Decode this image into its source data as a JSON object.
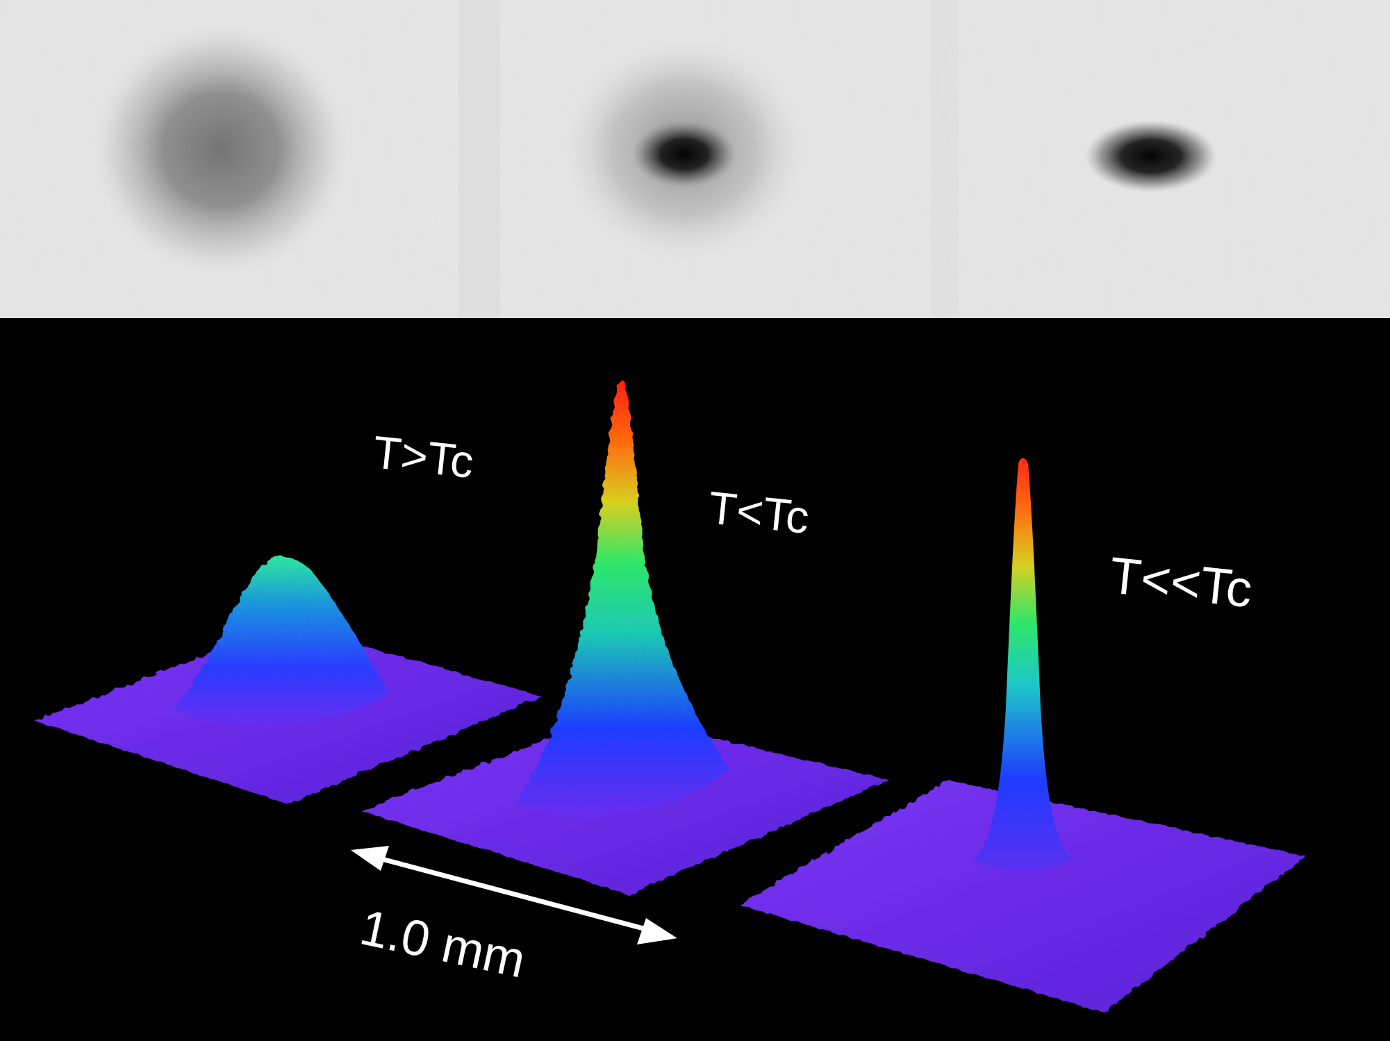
{
  "labels": {
    "above": "T>Tc",
    "below": "T<Tc",
    "far_below": "T<<Tc"
  },
  "scale_bar": {
    "label": "1.0 mm"
  },
  "colors": {
    "panel_top_background": "#e6e6e6",
    "panel_bottom_background": "#000000",
    "label_text": "#ffffff",
    "surface_base": "#6a2cf0",
    "colormap": [
      "#6a2cf0",
      "#1e3cff",
      "#1ec8b4",
      "#2ee66a",
      "#d8d020",
      "#ff6a10",
      "#ff1e10"
    ]
  }
}
